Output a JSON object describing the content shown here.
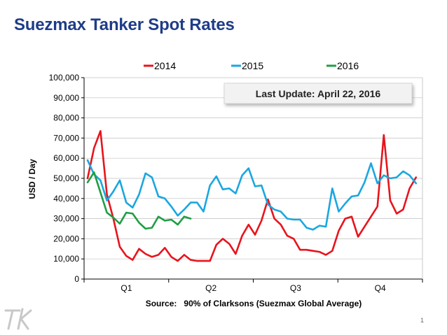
{
  "slide": {
    "title": "Suezmax Tanker Spot Rates",
    "page_number": "1",
    "logo_text": "TK"
  },
  "chart_data": {
    "type": "line",
    "title": "",
    "ylabel": "USD / Day",
    "xlabel": "Source:   90% of Clarksons (Suezmax Global Average)",
    "annotation": "Last Update: April 22, 2016",
    "ylim": [
      0,
      100000
    ],
    "yticks": [
      0,
      10000,
      20000,
      30000,
      40000,
      50000,
      60000,
      70000,
      80000,
      90000,
      100000
    ],
    "ytick_labels": [
      "0",
      "10,000",
      "20,000",
      "30,000",
      "40,000",
      "50,000",
      "60,000",
      "70,000",
      "80,000",
      "90,000",
      "100,000"
    ],
    "xlim": [
      0,
      52
    ],
    "quarter_labels": [
      "Q1",
      "Q2",
      "Q3",
      "Q4"
    ],
    "legend_position": "top",
    "series": [
      {
        "name": "2014",
        "color": "#e8141c",
        "values": [
          50000,
          65000,
          73500,
          42000,
          30000,
          16000,
          11500,
          9500,
          15000,
          12500,
          11000,
          12000,
          15500,
          11000,
          9000,
          12000,
          9500,
          9000,
          9000,
          9000,
          17000,
          20000,
          17500,
          12500,
          21500,
          27000,
          22000,
          29000,
          39500,
          30000,
          27000,
          21500,
          20000,
          14500,
          14500,
          14000,
          13500,
          12000,
          14000,
          24000,
          30000,
          31000,
          21000,
          26000,
          31000,
          36000,
          71500,
          39000,
          32500,
          34500,
          45000,
          50500
        ]
      },
      {
        "name": "2015",
        "color": "#1aa7e0",
        "values": [
          59000,
          52000,
          49000,
          39000,
          43500,
          49000,
          38000,
          35500,
          42000,
          52500,
          50500,
          41000,
          40000,
          36000,
          31500,
          34500,
          38000,
          38000,
          33500,
          46500,
          51000,
          44500,
          45000,
          42500,
          51500,
          55000,
          46000,
          46500,
          37000,
          34500,
          33500,
          30000,
          29500,
          29500,
          25500,
          24500,
          26500,
          26000,
          45000,
          33500,
          37500,
          41000,
          41500,
          48000,
          57500,
          47500,
          51500,
          50000,
          50500,
          53500,
          51500,
          47500
        ]
      },
      {
        "name": "2016",
        "color": "#1f9e43",
        "values": [
          48000,
          53000,
          43000,
          33000,
          30500,
          27500,
          33000,
          32500,
          28000,
          25000,
          25500,
          31000,
          29000,
          29500,
          27000,
          31000,
          30000
        ]
      }
    ]
  }
}
